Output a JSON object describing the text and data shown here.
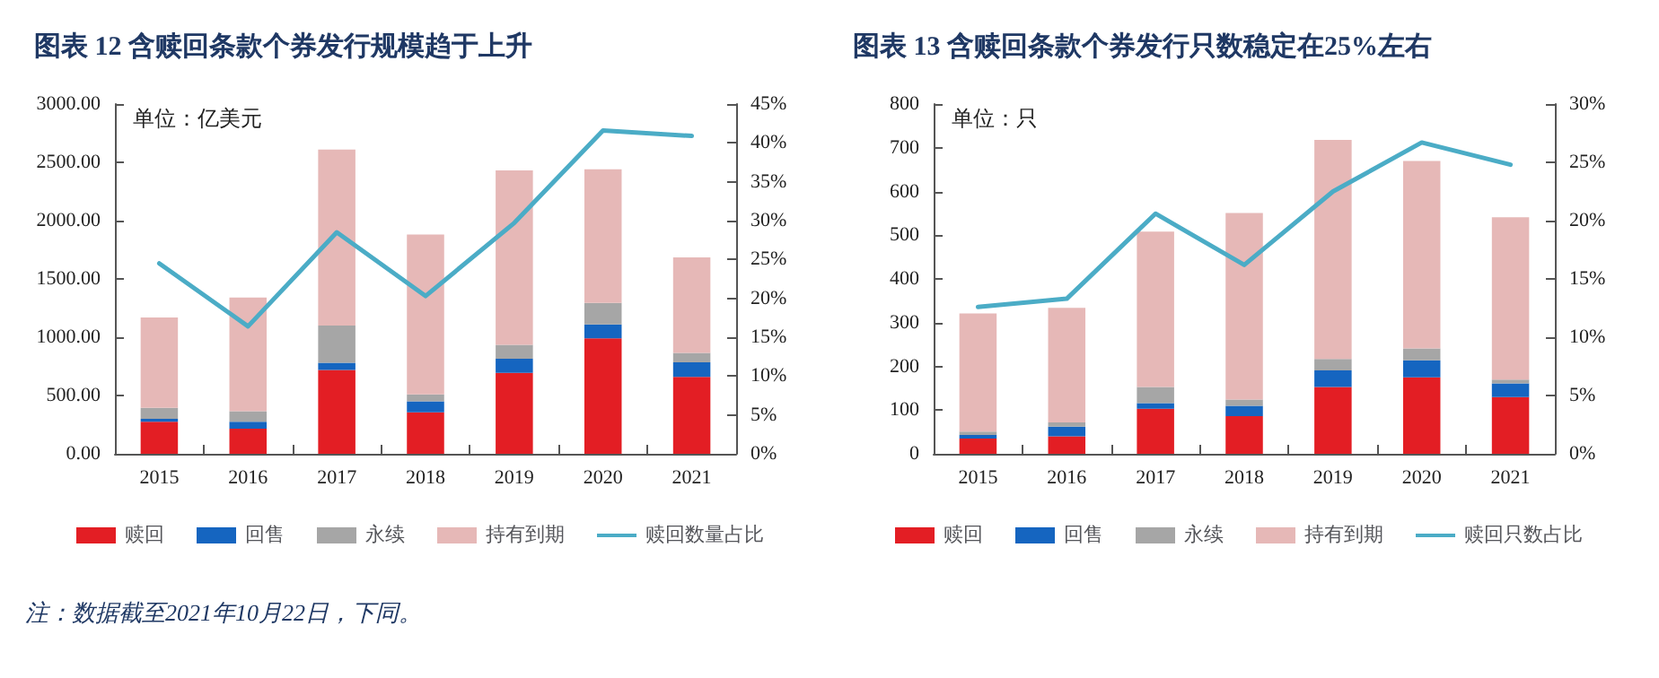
{
  "chart_data": [
    {
      "type": "bar",
      "title": "图表 12 含赎回条款个券发行规模趋于上升",
      "categories": [
        "2015",
        "2016",
        "2017",
        "2018",
        "2019",
        "2020",
        "2021"
      ],
      "stacked": true,
      "series": [
        {
          "name": "赎回",
          "color": "#e31e24",
          "values": [
            275,
            215,
            720,
            355,
            695,
            990,
            660
          ]
        },
        {
          "name": "回售",
          "color": "#1565c0",
          "values": [
            25,
            60,
            60,
            95,
            120,
            120,
            125
          ]
        },
        {
          "name": "永续",
          "color": "#a6a6a6",
          "values": [
            95,
            90,
            320,
            60,
            120,
            185,
            80
          ]
        },
        {
          "name": "持有到期",
          "color": "#e6b8b7",
          "values": [
            775,
            975,
            1510,
            1370,
            1495,
            1145,
            820
          ]
        },
        {
          "name": "赎回数量占比",
          "type": "line",
          "axis": "y2",
          "color": "#4bacc6",
          "values": [
            24.5,
            16.4,
            28.5,
            20.3,
            29.7,
            41.6,
            40.9
          ]
        }
      ],
      "ylim": [
        0,
        3000
      ],
      "yticks": [
        {
          "value": 0,
          "label": "0.00"
        },
        {
          "value": 500,
          "label": "500.00"
        },
        {
          "value": 1000,
          "label": "1000.00"
        },
        {
          "value": 1500,
          "label": "1500.00"
        },
        {
          "value": 2000,
          "label": "2000.00"
        },
        {
          "value": 2500,
          "label": "2500.00"
        },
        {
          "value": 3000,
          "label": "3000.00"
        }
      ],
      "y2lim": [
        0,
        45
      ],
      "y2ticks": [
        {
          "value": 0,
          "label": "0%"
        },
        {
          "value": 5,
          "label": "5%"
        },
        {
          "value": 10,
          "label": "10%"
        },
        {
          "value": 15,
          "label": "15%"
        },
        {
          "value": 20,
          "label": "20%"
        },
        {
          "value": 25,
          "label": "25%"
        },
        {
          "value": 30,
          "label": "30%"
        },
        {
          "value": 35,
          "label": "35%"
        },
        {
          "value": 40,
          "label": "40%"
        },
        {
          "value": 45,
          "label": "45%"
        }
      ],
      "grid": false,
      "legend": "bottom",
      "marker": "none",
      "annotations": [
        "单位：亿美元",
        "注：数据截至2021年10月22日，下同。"
      ]
    },
    {
      "type": "bar",
      "title": "图表 13 含赎回条款个券发行只数稳定在25%左右",
      "categories": [
        "2015",
        "2016",
        "2017",
        "2018",
        "2019",
        "2020",
        "2021"
      ],
      "stacked": true,
      "series": [
        {
          "name": "赎回",
          "color": "#e31e24",
          "values": [
            35,
            40,
            103,
            86,
            153,
            175,
            130
          ]
        },
        {
          "name": "回售",
          "color": "#1565c0",
          "values": [
            8,
            22,
            13,
            24,
            38,
            39,
            31
          ]
        },
        {
          "name": "永续",
          "color": "#a6a6a6",
          "values": [
            8,
            10,
            37,
            14,
            26,
            27,
            9
          ]
        },
        {
          "name": "持有到期",
          "color": "#e6b8b7",
          "values": [
            270,
            262,
            355,
            427,
            501,
            429,
            371
          ]
        },
        {
          "name": "赎回只数占比",
          "type": "line",
          "axis": "y2",
          "color": "#4bacc6",
          "values": [
            12.6,
            13.3,
            20.6,
            16.2,
            22.5,
            26.7,
            24.8
          ]
        }
      ],
      "ylim": [
        0,
        800
      ],
      "yticks": [
        0,
        100,
        200,
        300,
        400,
        500,
        600,
        700,
        800
      ],
      "y2lim": [
        0,
        30
      ],
      "y2ticks": [
        {
          "value": 0,
          "label": "0%"
        },
        {
          "value": 5,
          "label": "5%"
        },
        {
          "value": 10,
          "label": "10%"
        },
        {
          "value": 15,
          "label": "15%"
        },
        {
          "value": 20,
          "label": "20%"
        },
        {
          "value": 25,
          "label": "25%"
        },
        {
          "value": 30,
          "label": "30%"
        }
      ],
      "grid": false,
      "legend": "bottom",
      "marker": "none",
      "annotations": [
        "单位：只"
      ]
    }
  ]
}
